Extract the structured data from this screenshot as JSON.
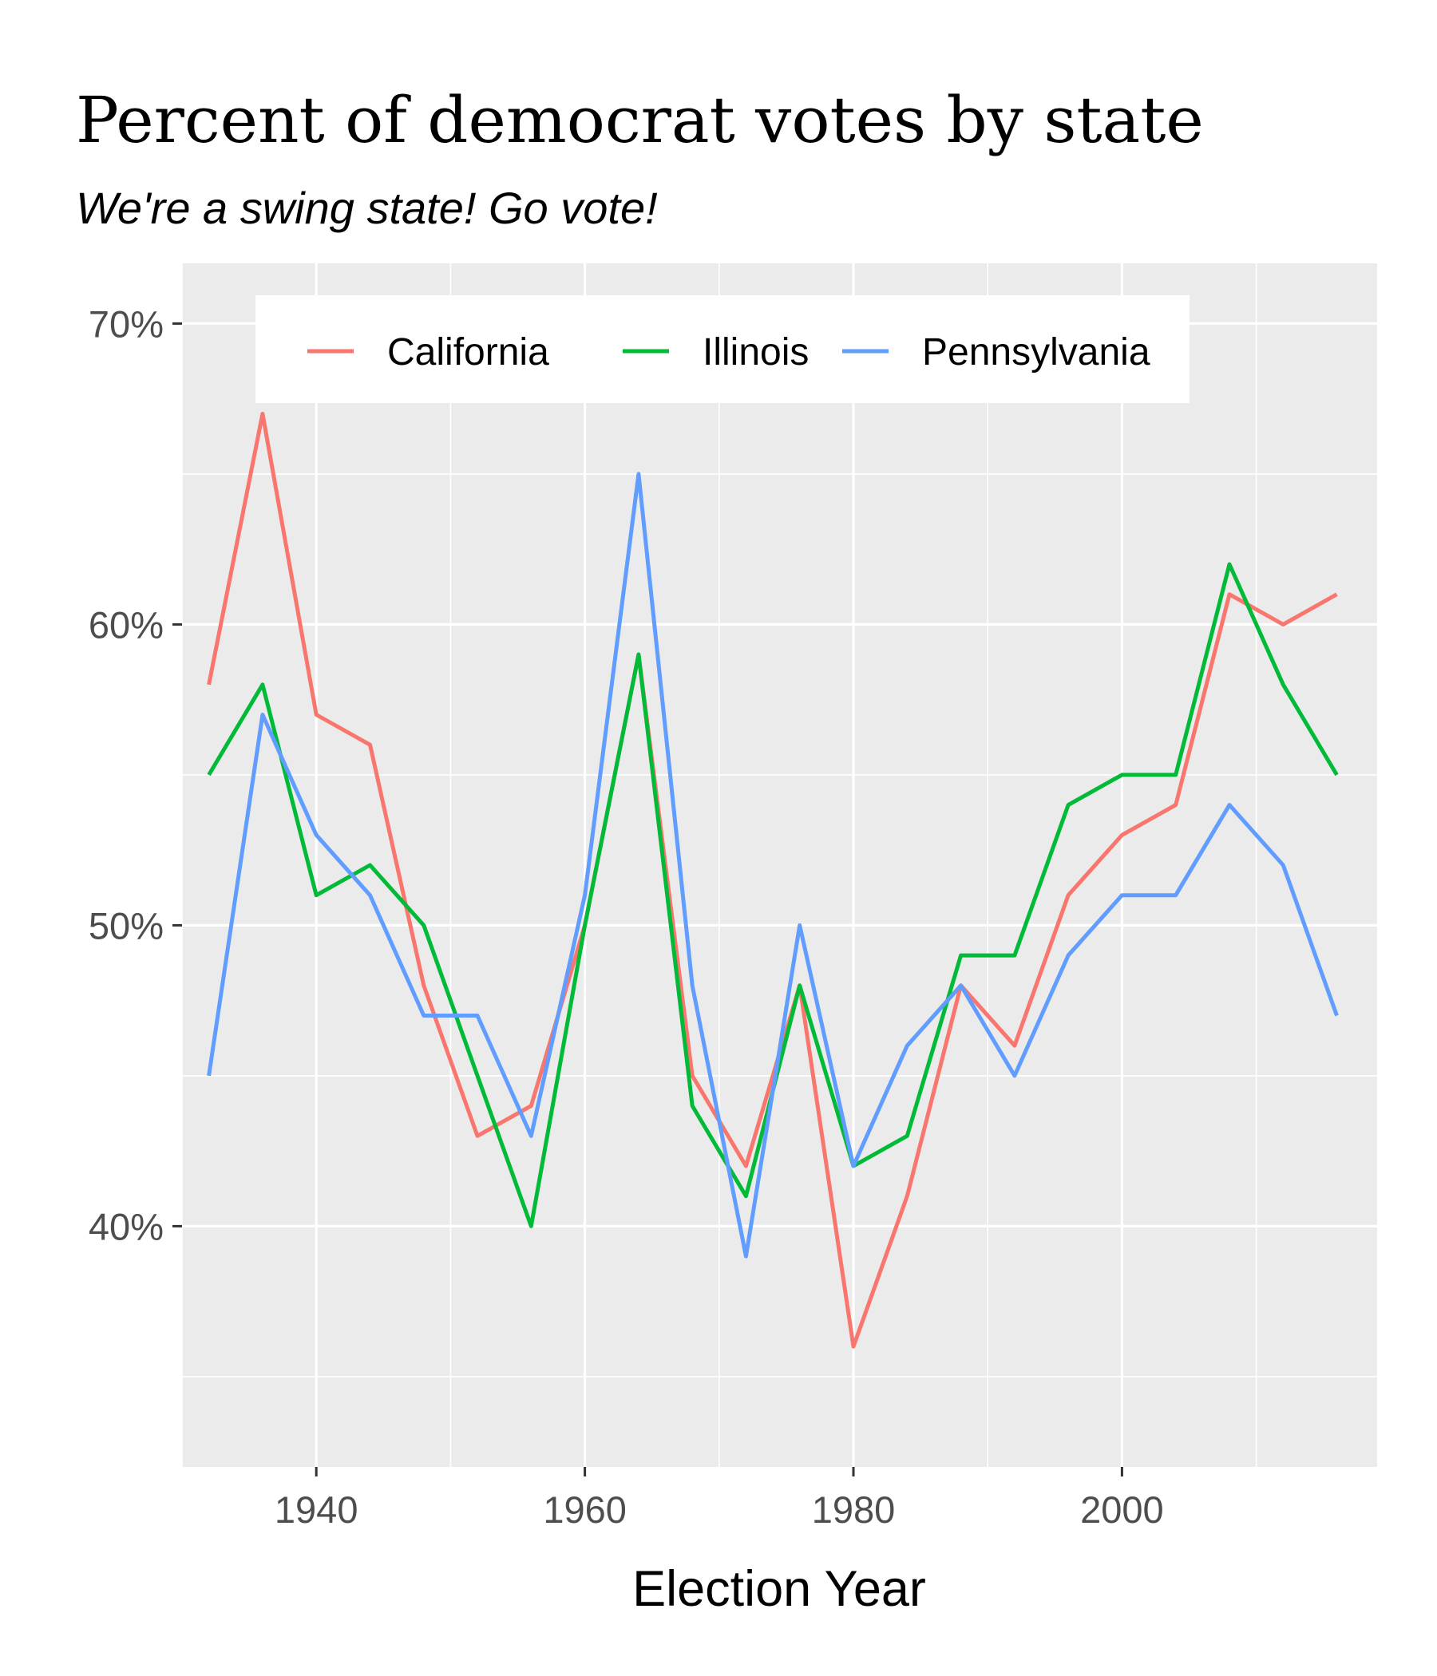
{
  "chart_data": {
    "type": "line",
    "title": "Percent of democrat votes by state",
    "subtitle": "We're a swing state! Go vote!",
    "xlabel": "Election Year",
    "ylabel": "",
    "xlim": [
      1930,
      2019
    ],
    "ylim": [
      32,
      72
    ],
    "x_ticks": [
      1940,
      1960,
      1980,
      2000
    ],
    "x_tick_labels": [
      "1940",
      "1960",
      "1980",
      "2000"
    ],
    "y_ticks": [
      40,
      50,
      60,
      70
    ],
    "y_tick_labels": [
      "40%",
      "50%",
      "60%",
      "70%"
    ],
    "grid": true,
    "legend": "top-inside",
    "x": [
      1932,
      1936,
      1940,
      1944,
      1948,
      1952,
      1956,
      1960,
      1964,
      1968,
      1972,
      1976,
      1980,
      1984,
      1988,
      1992,
      1996,
      2000,
      2004,
      2008,
      2012,
      2016
    ],
    "series": [
      {
        "name": "California",
        "color": "#F8766D",
        "values": [
          58,
          67,
          57,
          56,
          48,
          43,
          44,
          50,
          59,
          45,
          42,
          48,
          36,
          41,
          48,
          46,
          51,
          53,
          54,
          61,
          60,
          61
        ]
      },
      {
        "name": "Illinois",
        "color": "#00BA38",
        "values": [
          55,
          58,
          51,
          52,
          50,
          45,
          40,
          50,
          59,
          44,
          41,
          48,
          42,
          43,
          49,
          49,
          54,
          55,
          55,
          62,
          58,
          55
        ]
      },
      {
        "name": "Pennsylvania",
        "color": "#619CFF",
        "values": [
          45,
          57,
          53,
          51,
          47,
          47,
          43,
          51,
          65,
          48,
          39,
          50,
          42,
          46,
          48,
          45,
          49,
          51,
          51,
          54,
          52,
          47
        ]
      }
    ]
  }
}
